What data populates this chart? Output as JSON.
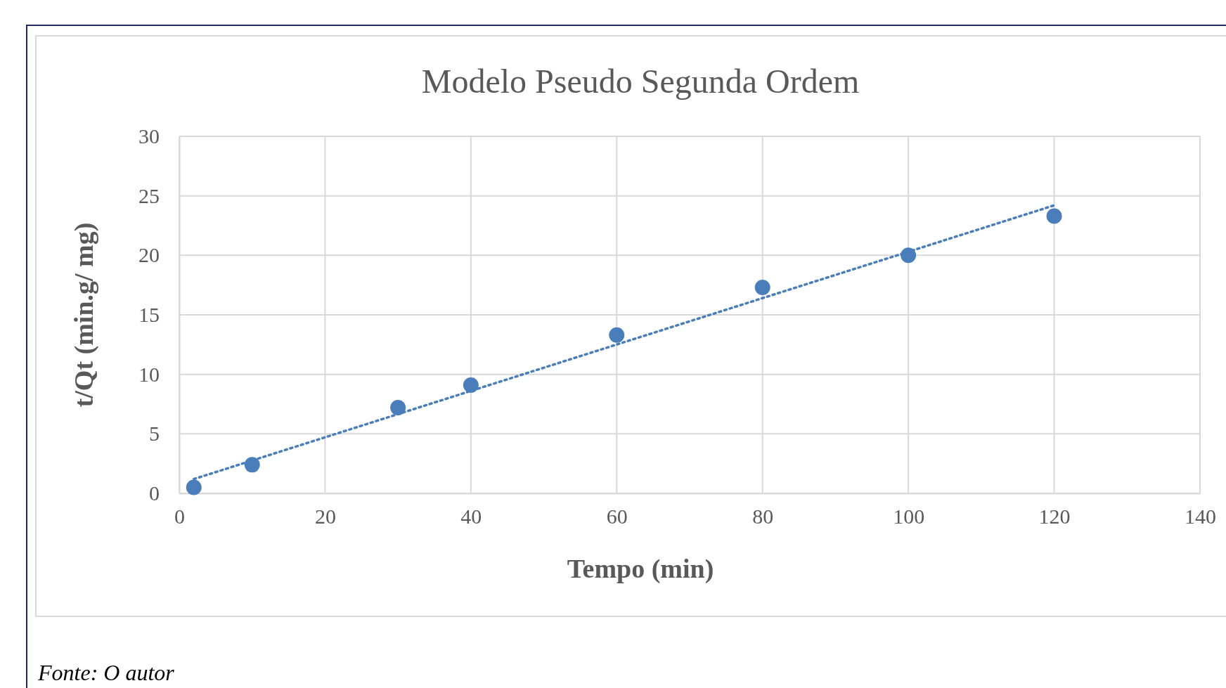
{
  "chart_data": {
    "type": "scatter",
    "title": "Modelo Pseudo Segunda Ordem",
    "xlabel": "Tempo (min)",
    "ylabel": "t/Qt (min.g/ mg)",
    "x": [
      2,
      10,
      30,
      40,
      60,
      80,
      100,
      120
    ],
    "series": [
      {
        "color": "#4a7ebb",
        "marker": "circle",
        "values": [
          0.5,
          2.4,
          7.2,
          9.1,
          13.3,
          17.3,
          20.0,
          23.3
        ]
      },
      {
        "type": "line",
        "color": "#4a7ebb",
        "line_style": "dotted",
        "marker": "none",
        "x": [
          2,
          120
        ],
        "values": [
          1.2,
          24.2
        ]
      }
    ],
    "xlim": [
      0,
      140
    ],
    "xticks": [
      0,
      20,
      40,
      60,
      80,
      100,
      120,
      140
    ],
    "ylim": [
      0,
      30
    ],
    "yticks": [
      0,
      5,
      10,
      15,
      20,
      25,
      30
    ],
    "grid": true,
    "annotations": [
      "Fonte: O autor"
    ]
  }
}
